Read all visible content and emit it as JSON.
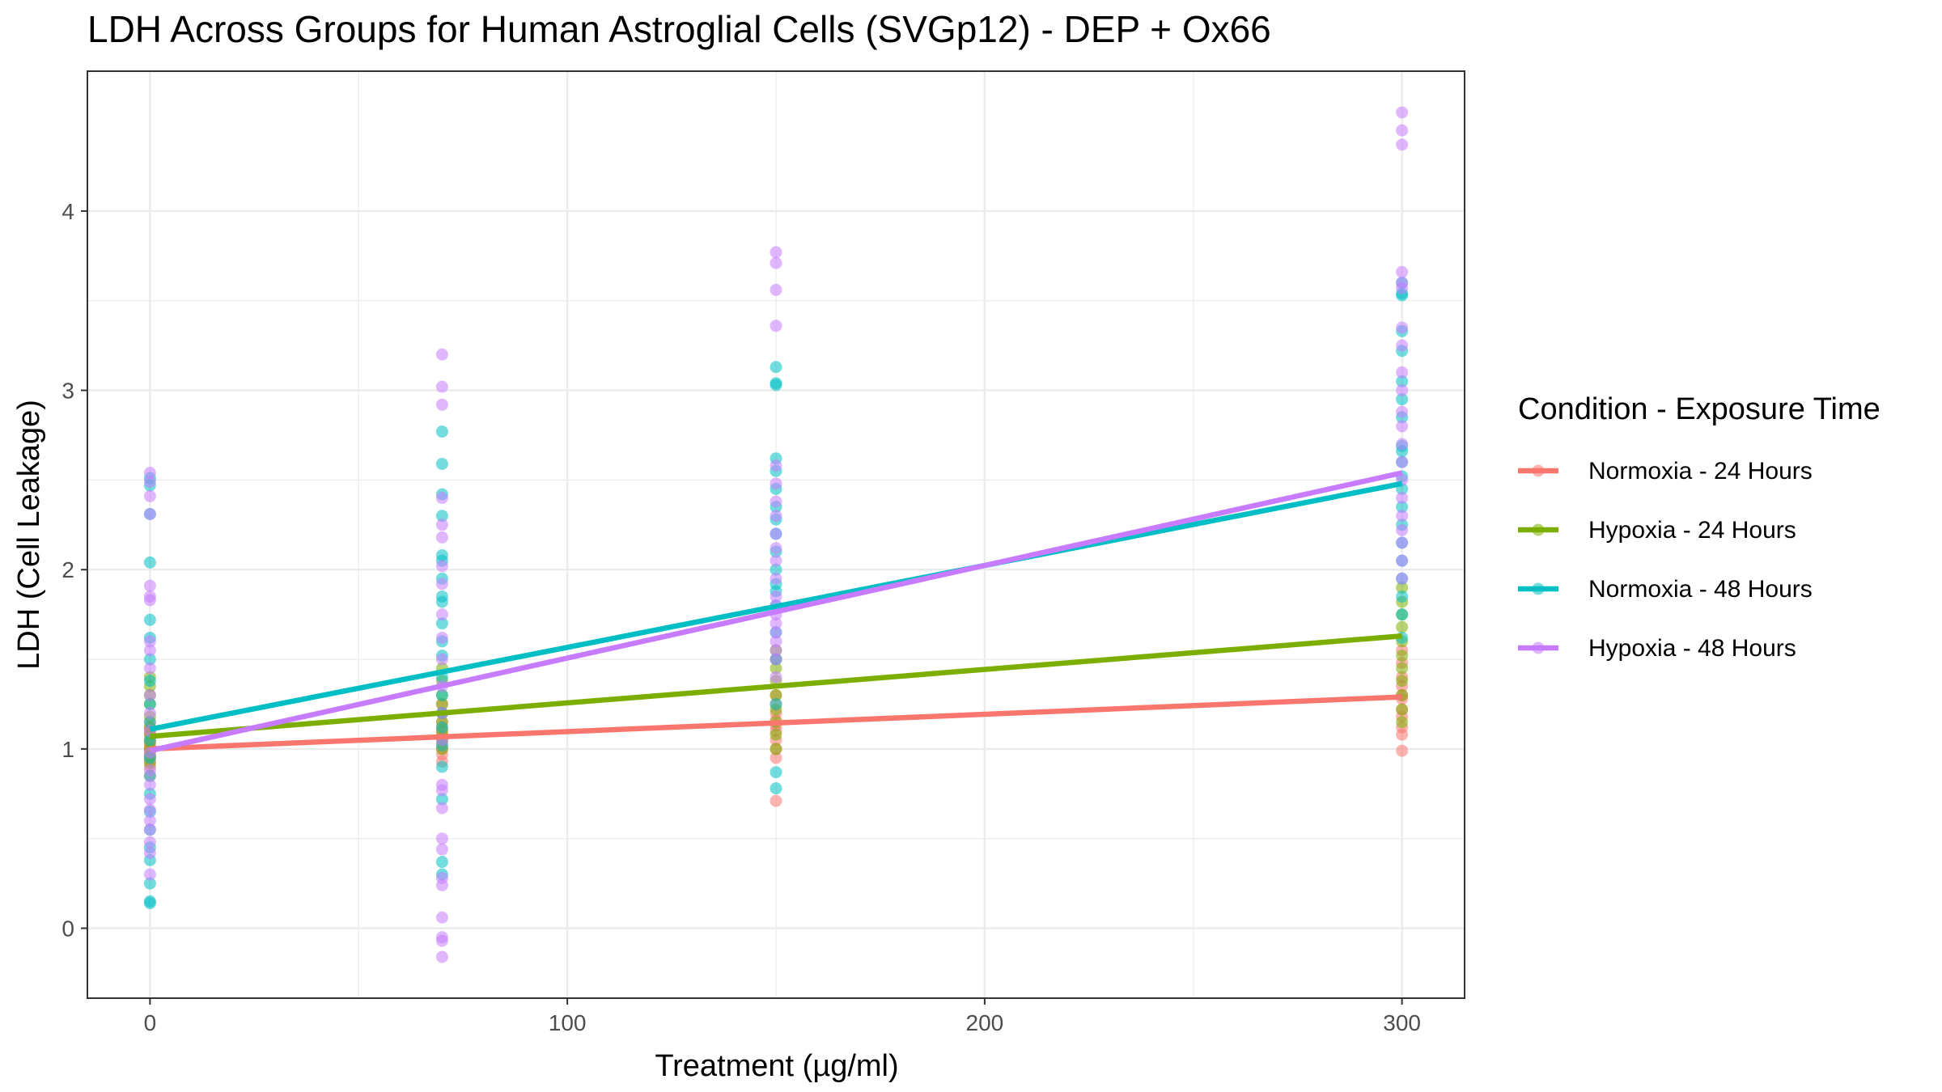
{
  "chart_data": {
    "type": "scatter",
    "title": "LDH Across Groups for Human Astroglial Cells (SVGp12) - DEP + Ox66",
    "xlabel": "Treatment (µg/ml)",
    "ylabel": "LDH (Cell Leakage)",
    "xlim": [
      -15,
      315
    ],
    "ylim": [
      -0.39,
      4.78
    ],
    "x_ticks": [
      0,
      100,
      200,
      300
    ],
    "x_tick_labels": [
      "0",
      "100",
      "200",
      "300"
    ],
    "y_ticks": [
      0,
      1,
      2,
      3,
      4
    ],
    "y_tick_labels": [
      "0",
      "1",
      "2",
      "3",
      "4"
    ],
    "grid": true,
    "legend": {
      "title": "Condition - Exposure Time",
      "position": "right"
    },
    "series": [
      {
        "name": "Normoxia - 24 Hours",
        "color": "#F8766D",
        "fit_line": {
          "x": [
            0,
            300
          ],
          "y": [
            1.0,
            1.29
          ]
        },
        "points": [
          [
            0,
            0.85
          ],
          [
            0,
            0.9
          ],
          [
            0,
            0.93
          ],
          [
            0,
            0.95
          ],
          [
            0,
            0.97
          ],
          [
            0,
            0.99
          ],
          [
            0,
            1.0
          ],
          [
            0,
            1.01
          ],
          [
            0,
            1.03
          ],
          [
            0,
            1.05
          ],
          [
            0,
            1.08
          ],
          [
            0,
            1.1
          ],
          [
            0,
            1.12
          ],
          [
            0,
            1.15
          ],
          [
            70,
            0.93
          ],
          [
            70,
            0.97
          ],
          [
            70,
            1.0
          ],
          [
            70,
            1.03
          ],
          [
            70,
            1.06
          ],
          [
            70,
            1.08
          ],
          [
            70,
            1.1
          ],
          [
            70,
            1.12
          ],
          [
            70,
            1.15
          ],
          [
            70,
            1.2
          ],
          [
            70,
            1.25
          ],
          [
            150,
            0.71
          ],
          [
            150,
            0.95
          ],
          [
            150,
            1.0
          ],
          [
            150,
            1.05
          ],
          [
            150,
            1.1
          ],
          [
            150,
            1.13
          ],
          [
            150,
            1.16
          ],
          [
            150,
            1.2
          ],
          [
            150,
            1.25
          ],
          [
            150,
            1.3
          ],
          [
            300,
            0.99
          ],
          [
            300,
            1.08
          ],
          [
            300,
            1.12
          ],
          [
            300,
            1.18
          ],
          [
            300,
            1.22
          ],
          [
            300,
            1.28
          ],
          [
            300,
            1.3
          ],
          [
            300,
            1.35
          ],
          [
            300,
            1.4
          ],
          [
            300,
            1.48
          ],
          [
            300,
            1.55
          ]
        ]
      },
      {
        "name": "Hypoxia - 24 Hours",
        "color": "#7CAE00",
        "fit_line": {
          "x": [
            0,
            300
          ],
          "y": [
            1.07,
            1.63
          ]
        },
        "points": [
          [
            0,
            0.92
          ],
          [
            0,
            0.96
          ],
          [
            0,
            1.0
          ],
          [
            0,
            1.04
          ],
          [
            0,
            1.08
          ],
          [
            0,
            1.12
          ],
          [
            0,
            1.18
          ],
          [
            0,
            1.25
          ],
          [
            0,
            1.3
          ],
          [
            0,
            1.35
          ],
          [
            0,
            1.4
          ],
          [
            70,
            1.0
          ],
          [
            70,
            1.05
          ],
          [
            70,
            1.1
          ],
          [
            70,
            1.15
          ],
          [
            70,
            1.2
          ],
          [
            70,
            1.25
          ],
          [
            70,
            1.3
          ],
          [
            70,
            1.38
          ],
          [
            70,
            1.45
          ],
          [
            150,
            1.0
          ],
          [
            150,
            1.08
          ],
          [
            150,
            1.15
          ],
          [
            150,
            1.22
          ],
          [
            150,
            1.3
          ],
          [
            150,
            1.38
          ],
          [
            150,
            1.45
          ],
          [
            150,
            1.5
          ],
          [
            150,
            1.55
          ],
          [
            300,
            1.15
          ],
          [
            300,
            1.22
          ],
          [
            300,
            1.3
          ],
          [
            300,
            1.38
          ],
          [
            300,
            1.45
          ],
          [
            300,
            1.52
          ],
          [
            300,
            1.6
          ],
          [
            300,
            1.68
          ],
          [
            300,
            1.75
          ],
          [
            300,
            1.82
          ],
          [
            300,
            1.9
          ]
        ]
      },
      {
        "name": "Normoxia - 48 Hours",
        "color": "#00BFC4",
        "fit_line": {
          "x": [
            0,
            300
          ],
          "y": [
            1.11,
            2.48
          ]
        },
        "points": [
          [
            0,
            0.14
          ],
          [
            0,
            0.15
          ],
          [
            0,
            0.25
          ],
          [
            0,
            0.38
          ],
          [
            0,
            0.45
          ],
          [
            0,
            0.55
          ],
          [
            0,
            0.65
          ],
          [
            0,
            0.75
          ],
          [
            0,
            0.85
          ],
          [
            0,
            0.95
          ],
          [
            0,
            1.05
          ],
          [
            0,
            1.15
          ],
          [
            0,
            1.25
          ],
          [
            0,
            1.38
          ],
          [
            0,
            1.5
          ],
          [
            0,
            1.62
          ],
          [
            0,
            1.72
          ],
          [
            0,
            2.04
          ],
          [
            0,
            2.31
          ],
          [
            0,
            2.47
          ],
          [
            0,
            2.51
          ],
          [
            70,
            0.3
          ],
          [
            70,
            0.37
          ],
          [
            70,
            0.72
          ],
          [
            70,
            0.9
          ],
          [
            70,
            1.02
          ],
          [
            70,
            1.12
          ],
          [
            70,
            1.2
          ],
          [
            70,
            1.3
          ],
          [
            70,
            1.4
          ],
          [
            70,
            1.52
          ],
          [
            70,
            1.6
          ],
          [
            70,
            1.7
          ],
          [
            70,
            1.82
          ],
          [
            70,
            1.85
          ],
          [
            70,
            1.95
          ],
          [
            70,
            2.05
          ],
          [
            70,
            2.08
          ],
          [
            70,
            2.3
          ],
          [
            70,
            2.42
          ],
          [
            70,
            2.59
          ],
          [
            70,
            2.77
          ],
          [
            150,
            0.78
          ],
          [
            150,
            0.87
          ],
          [
            150,
            1.25
          ],
          [
            150,
            1.5
          ],
          [
            150,
            1.65
          ],
          [
            150,
            1.8
          ],
          [
            150,
            1.88
          ],
          [
            150,
            1.92
          ],
          [
            150,
            2.0
          ],
          [
            150,
            2.1
          ],
          [
            150,
            2.2
          ],
          [
            150,
            2.28
          ],
          [
            150,
            2.35
          ],
          [
            150,
            2.45
          ],
          [
            150,
            2.55
          ],
          [
            150,
            2.62
          ],
          [
            150,
            3.03
          ],
          [
            150,
            3.04
          ],
          [
            150,
            3.13
          ],
          [
            300,
            1.62
          ],
          [
            300,
            1.75
          ],
          [
            300,
            1.85
          ],
          [
            300,
            1.95
          ],
          [
            300,
            2.05
          ],
          [
            300,
            2.15
          ],
          [
            300,
            2.25
          ],
          [
            300,
            2.35
          ],
          [
            300,
            2.45
          ],
          [
            300,
            2.52
          ],
          [
            300,
            2.6
          ],
          [
            300,
            2.66
          ],
          [
            300,
            2.69
          ],
          [
            300,
            2.85
          ],
          [
            300,
            2.95
          ],
          [
            300,
            3.05
          ],
          [
            300,
            3.22
          ],
          [
            300,
            3.33
          ],
          [
            300,
            3.53
          ],
          [
            300,
            3.54
          ],
          [
            300,
            3.6
          ]
        ]
      },
      {
        "name": "Hypoxia - 48 Hours",
        "color": "#C77CFF",
        "fit_line": {
          "x": [
            0,
            300
          ],
          "y": [
            0.99,
            2.54
          ]
        },
        "points": [
          [
            0,
            0.3
          ],
          [
            0,
            0.42
          ],
          [
            0,
            0.48
          ],
          [
            0,
            0.55
          ],
          [
            0,
            0.6
          ],
          [
            0,
            0.66
          ],
          [
            0,
            0.72
          ],
          [
            0,
            0.8
          ],
          [
            0,
            0.88
          ],
          [
            0,
            0.98
          ],
          [
            0,
            1.1
          ],
          [
            0,
            1.2
          ],
          [
            0,
            1.3
          ],
          [
            0,
            1.45
          ],
          [
            0,
            1.55
          ],
          [
            0,
            1.6
          ],
          [
            0,
            1.83
          ],
          [
            0,
            1.85
          ],
          [
            0,
            1.91
          ],
          [
            0,
            2.31
          ],
          [
            0,
            2.41
          ],
          [
            0,
            2.49
          ],
          [
            0,
            2.54
          ],
          [
            70,
            -0.16
          ],
          [
            70,
            -0.07
          ],
          [
            70,
            -0.05
          ],
          [
            70,
            0.06
          ],
          [
            70,
            0.24
          ],
          [
            70,
            0.28
          ],
          [
            70,
            0.44
          ],
          [
            70,
            0.5
          ],
          [
            70,
            0.67
          ],
          [
            70,
            0.77
          ],
          [
            70,
            0.8
          ],
          [
            70,
            1.05
          ],
          [
            70,
            1.2
          ],
          [
            70,
            1.35
          ],
          [
            70,
            1.5
          ],
          [
            70,
            1.62
          ],
          [
            70,
            1.75
          ],
          [
            70,
            1.92
          ],
          [
            70,
            2.02
          ],
          [
            70,
            2.18
          ],
          [
            70,
            2.25
          ],
          [
            70,
            2.4
          ],
          [
            70,
            2.92
          ],
          [
            70,
            3.02
          ],
          [
            70,
            3.2
          ],
          [
            150,
            1.4
          ],
          [
            150,
            1.5
          ],
          [
            150,
            1.55
          ],
          [
            150,
            1.6
          ],
          [
            150,
            1.65
          ],
          [
            150,
            1.7
          ],
          [
            150,
            1.75
          ],
          [
            150,
            1.8
          ],
          [
            150,
            1.85
          ],
          [
            150,
            1.95
          ],
          [
            150,
            2.05
          ],
          [
            150,
            2.12
          ],
          [
            150,
            2.2
          ],
          [
            150,
            2.3
          ],
          [
            150,
            2.38
          ],
          [
            150,
            2.48
          ],
          [
            150,
            2.58
          ],
          [
            150,
            3.36
          ],
          [
            150,
            3.56
          ],
          [
            150,
            3.71
          ],
          [
            150,
            3.77
          ],
          [
            300,
            1.95
          ],
          [
            300,
            2.05
          ],
          [
            300,
            2.15
          ],
          [
            300,
            2.22
          ],
          [
            300,
            2.3
          ],
          [
            300,
            2.4
          ],
          [
            300,
            2.5
          ],
          [
            300,
            2.6
          ],
          [
            300,
            2.7
          ],
          [
            300,
            2.8
          ],
          [
            300,
            2.88
          ],
          [
            300,
            3.0
          ],
          [
            300,
            3.1
          ],
          [
            300,
            3.25
          ],
          [
            300,
            3.35
          ],
          [
            300,
            3.57
          ],
          [
            300,
            3.6
          ],
          [
            300,
            3.66
          ],
          [
            300,
            4.37
          ],
          [
            300,
            4.45
          ],
          [
            300,
            4.55
          ]
        ]
      }
    ]
  }
}
